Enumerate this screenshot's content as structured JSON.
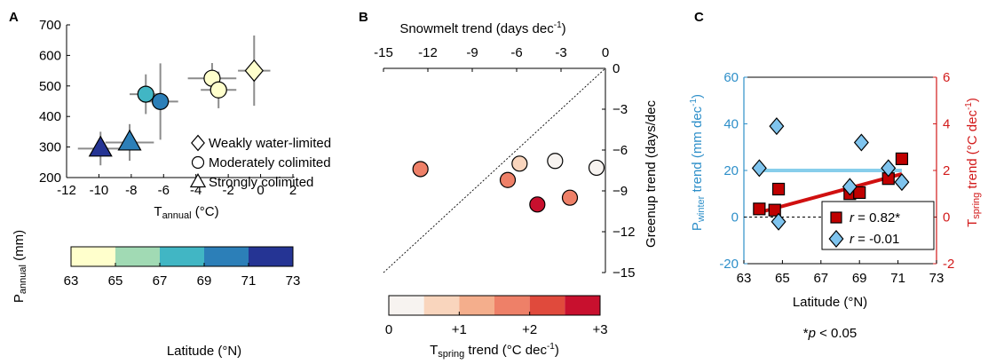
{
  "chart_data": [
    {
      "panel": "A",
      "type": "scatter",
      "xlabel_main": "T",
      "xlabel_sub": "annual",
      "xlabel_unit": " (°C)",
      "ylabel_main": "P",
      "ylabel_sub": "annual",
      "ylabel_unit": " (mm)",
      "xlim": [
        -12,
        2
      ],
      "ylim": [
        200,
        700
      ],
      "xticks": [
        -12,
        -10,
        -8,
        -6,
        -4,
        -2,
        0,
        2
      ],
      "yticks": [
        200,
        300,
        400,
        500,
        600,
        700
      ],
      "legend": [
        {
          "marker": "diamond",
          "label": "Weakly water-limited"
        },
        {
          "marker": "circle",
          "label": "Moderately colimited"
        },
        {
          "marker": "triangle",
          "label": "Strongly colimited"
        }
      ],
      "points": [
        {
          "x": -0.4,
          "y": 550,
          "xerr": 1.0,
          "yerr": 115,
          "lat": 63.5,
          "marker": "diamond"
        },
        {
          "x": -3.0,
          "y": 525,
          "xerr": 1.5,
          "yerr": 50,
          "lat": 63.5,
          "marker": "circle"
        },
        {
          "x": -2.6,
          "y": 487,
          "xerr": 1.1,
          "yerr": 60,
          "lat": 63.8,
          "marker": "circle"
        },
        {
          "x": -7.1,
          "y": 473,
          "xerr": 1.0,
          "yerr": 65,
          "lat": 67.7,
          "marker": "circle"
        },
        {
          "x": -6.2,
          "y": 449,
          "xerr": 1.1,
          "yerr": 125,
          "lat": 70.0,
          "marker": "circle"
        },
        {
          "x": -8.1,
          "y": 315,
          "xerr": 1.5,
          "yerr": 60,
          "lat": 69.8,
          "marker": "triangle"
        },
        {
          "x": -9.9,
          "y": 295,
          "xerr": 1.4,
          "yerr": 55,
          "lat": 72.3,
          "marker": "triangle"
        }
      ],
      "colorbar": {
        "label": "Latitude (°N)",
        "ticks": [
          63,
          65,
          67,
          69,
          71,
          73
        ],
        "colors": [
          "#ffffcc",
          "#a1dab4",
          "#41b6c4",
          "#2c7fb8",
          "#253494"
        ]
      }
    },
    {
      "panel": "B",
      "type": "scatter",
      "xlabel_main": "Snowmelt trend (days dec",
      "xlabel_sup": "-1",
      "xlabel_end": ")",
      "ylabel": "Greenup trend (days/dec",
      "xlim": [
        -15,
        0
      ],
      "ylim": [
        -15,
        0
      ],
      "xticks": [
        -15,
        -12,
        -9,
        -6,
        -3,
        0
      ],
      "yticks": [
        0,
        -3,
        -6,
        -9,
        -12,
        -15
      ],
      "one_to_one_line": true,
      "points": [
        {
          "x": -12.5,
          "y": -7.4,
          "t": 1.6
        },
        {
          "x": -6.6,
          "y": -8.2,
          "t": 1.8
        },
        {
          "x": -5.8,
          "y": -7.0,
          "t": 0.7
        },
        {
          "x": -3.4,
          "y": -6.8,
          "t": 0.2
        },
        {
          "x": -0.6,
          "y": -7.3,
          "t": 0.1
        },
        {
          "x": -4.6,
          "y": -10.0,
          "t": 2.7
        },
        {
          "x": -2.4,
          "y": -9.5,
          "t": 1.5
        }
      ],
      "colorbar": {
        "label_main": "T",
        "label_sub": "spring",
        "label_unit": " trend (°C dec",
        "label_sup": "-1",
        "label_end": ")",
        "ticks": [
          "0",
          "+1",
          "+2",
          "+3"
        ],
        "colors": [
          "#f7f3f0",
          "#f9d5bd",
          "#f4ae8c",
          "#ee8068",
          "#e04a3c",
          "#c8102e"
        ]
      }
    },
    {
      "panel": "C",
      "type": "scatter",
      "xlabel": "Latitude (°N)",
      "ylabel_left_main": "P",
      "ylabel_left_sub": "winter",
      "ylabel_left_unit": " trend (mm dec",
      "ylabel_left_sup": "-1",
      "ylabel_left_end": ")",
      "ylabel_right_main": "T",
      "ylabel_right_sub": "spring",
      "ylabel_right_unit": " trend (°C dec",
      "ylabel_right_sup": "-1",
      "ylabel_right_end": ")",
      "xlim": [
        63,
        73
      ],
      "ylim_left": [
        -20,
        60
      ],
      "ylim_right": [
        -2,
        6
      ],
      "xticks": [
        63,
        65,
        67,
        69,
        71,
        73
      ],
      "yticks_left": [
        -20,
        0,
        20,
        40,
        60
      ],
      "yticks_right": [
        -2,
        0,
        2,
        4,
        6
      ],
      "series": [
        {
          "name_prefix": "r",
          "name_value": " = -0.01",
          "marker": "diamond",
          "color": "#7fc4ee",
          "axis": "left",
          "x": [
            63.8,
            64.7,
            64.8,
            68.5,
            69.1,
            70.5,
            71.2
          ],
          "y": [
            21,
            39,
            -2,
            13,
            32,
            21,
            15
          ],
          "fit": {
            "x": [
              63.8,
              71.2
            ],
            "y": [
              20,
              20
            ],
            "color": "#87ceeb"
          }
        },
        {
          "name_prefix": "r",
          "name_value": " = 0.82*",
          "marker": "square",
          "color": "#c00000",
          "axis": "right",
          "x": [
            63.8,
            64.6,
            64.8,
            68.5,
            69.0,
            70.5,
            71.2
          ],
          "y": [
            0.35,
            0.3,
            1.2,
            1.0,
            1.05,
            1.65,
            2.5
          ],
          "fit": {
            "x": [
              63.8,
              71.2
            ],
            "y": [
              0.2,
              1.85
            ],
            "color": "#d01010"
          }
        }
      ],
      "footnote_star": "*",
      "footnote_p": "p",
      "footnote_rest": " < 0.05"
    }
  ],
  "panel_labels": {
    "a": "A",
    "b": "B",
    "c": "C"
  },
  "colors": {
    "grey_errorbar": "#8c8c8c",
    "blue_axis": "#2e8fc9",
    "red_axis": "#d21a1a"
  }
}
